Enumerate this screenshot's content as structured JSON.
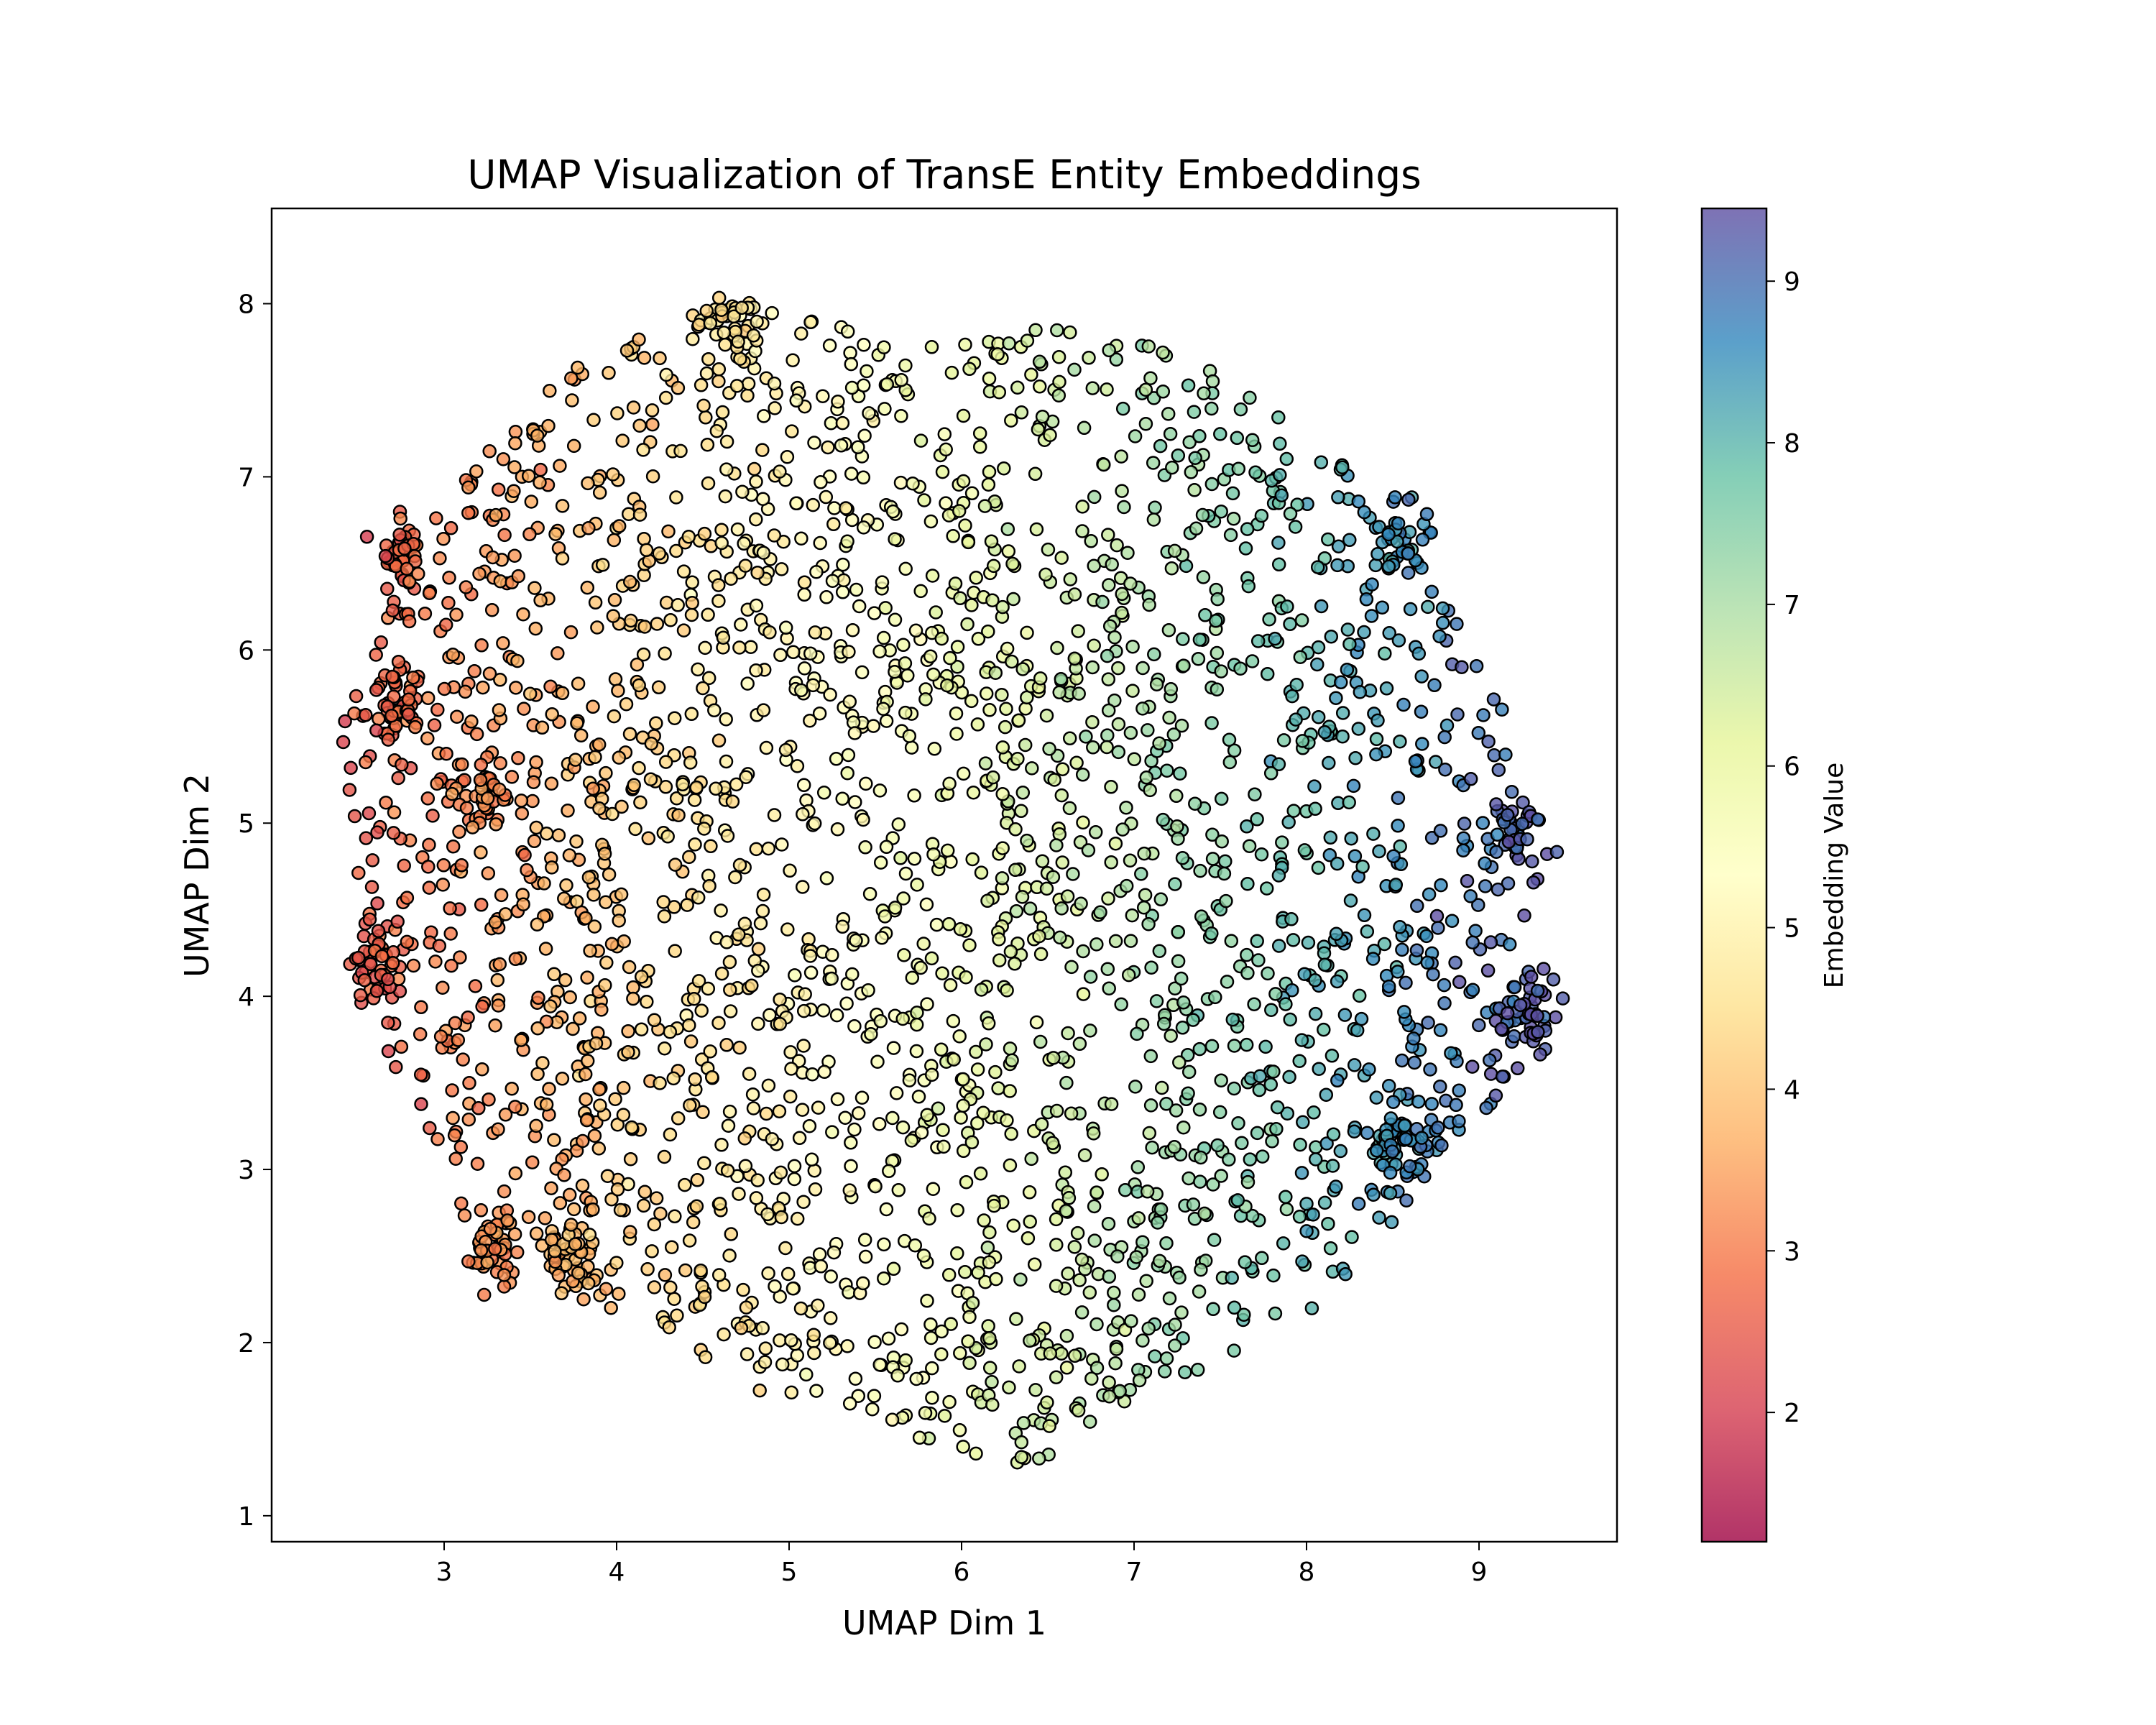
{
  "chart_data": {
    "type": "scatter",
    "title": "UMAP Visualization of TransE Entity Embeddings",
    "xlabel": "UMAP Dim 1",
    "ylabel": "UMAP Dim 2",
    "xlim": [
      2.0,
      9.8
    ],
    "ylim": [
      0.85,
      8.55
    ],
    "xticks": [
      "3",
      "4",
      "5",
      "6",
      "7",
      "8",
      "9"
    ],
    "yticks": [
      "1",
      "2",
      "3",
      "4",
      "5",
      "6",
      "7",
      "8"
    ],
    "grid": false,
    "colormap": "Spectral",
    "point_alpha": 0.8,
    "point_edge_color": "#000000",
    "point_count_approx": 3000,
    "color_encoding": "approximately proportional to UMAP Dim 1",
    "cloud_shape": {
      "center": [
        5.9,
        4.7
      ],
      "x_extent": [
        2.4,
        9.45
      ],
      "y_extent": [
        1.2,
        8.15
      ],
      "outline": [
        [
          2.4,
          5.6
        ],
        [
          2.55,
          4.0
        ],
        [
          2.75,
          3.3
        ],
        [
          3.0,
          2.7
        ],
        [
          3.3,
          2.45
        ],
        [
          3.8,
          2.3
        ],
        [
          4.2,
          2.05
        ],
        [
          4.7,
          1.8
        ],
        [
          5.2,
          1.5
        ],
        [
          5.7,
          1.4
        ],
        [
          6.2,
          1.25
        ],
        [
          6.6,
          1.35
        ],
        [
          7.1,
          1.7
        ],
        [
          7.6,
          1.95
        ],
        [
          8.1,
          2.2
        ],
        [
          8.5,
          2.7
        ],
        [
          8.8,
          3.1
        ],
        [
          9.1,
          3.4
        ],
        [
          9.4,
          3.7
        ],
        [
          9.3,
          4.3
        ],
        [
          9.25,
          5.2
        ],
        [
          9.1,
          5.9
        ],
        [
          8.8,
          6.3
        ],
        [
          8.5,
          6.9
        ],
        [
          8.0,
          7.2
        ],
        [
          7.6,
          7.6
        ],
        [
          7.2,
          7.85
        ],
        [
          6.75,
          7.95
        ],
        [
          6.2,
          7.85
        ],
        [
          5.8,
          7.75
        ],
        [
          5.3,
          7.9
        ],
        [
          4.8,
          8.15
        ],
        [
          4.3,
          7.85
        ],
        [
          3.9,
          7.75
        ],
        [
          3.6,
          7.5
        ],
        [
          3.2,
          7.1
        ],
        [
          2.9,
          6.7
        ],
        [
          2.7,
          6.5
        ],
        [
          2.55,
          5.9
        ]
      ]
    },
    "clusters": [
      {
        "x": 2.75,
        "y": 6.55,
        "label_visible": false
      },
      {
        "x": 2.75,
        "y": 5.65,
        "label_visible": false
      },
      {
        "x": 2.6,
        "y": 4.2,
        "label_visible": false
      },
      {
        "x": 3.2,
        "y": 5.15,
        "label_visible": false
      },
      {
        "x": 3.3,
        "y": 2.55,
        "label_visible": false
      },
      {
        "x": 3.75,
        "y": 2.45,
        "label_visible": false
      },
      {
        "x": 4.65,
        "y": 7.85,
        "label_visible": false
      },
      {
        "x": 8.55,
        "y": 3.1,
        "label_visible": false
      },
      {
        "x": 9.2,
        "y": 4.95,
        "label_visible": false
      },
      {
        "x": 9.3,
        "y": 3.9,
        "label_visible": false
      },
      {
        "x": 8.55,
        "y": 6.6,
        "label_visible": false
      }
    ]
  },
  "colorbar": {
    "label": "Embedding Value",
    "range": [
      1.2,
      9.45
    ],
    "ticks": [
      "2",
      "3",
      "4",
      "5",
      "6",
      "7",
      "8",
      "9"
    ]
  }
}
